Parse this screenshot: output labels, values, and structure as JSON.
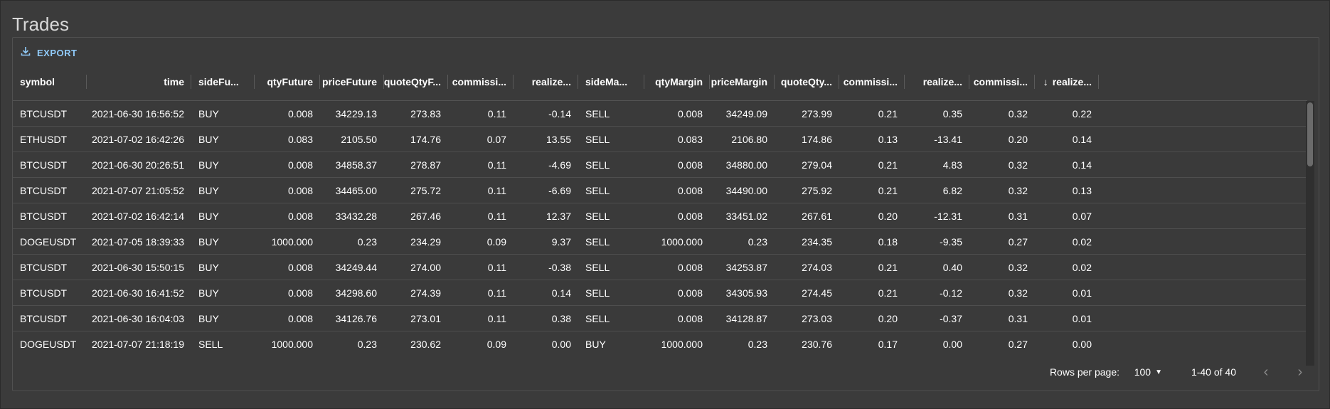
{
  "page": {
    "title": "Trades"
  },
  "toolbar": {
    "export_label": "EXPORT",
    "icon": "download-icon",
    "accent": "#90caf9"
  },
  "columns": [
    "symbol",
    "time",
    "sideFu...",
    "qtyFuture",
    "priceFuture",
    "quoteQtyF...",
    "commissi...",
    "realize...",
    "sideMa...",
    "qtyMargin",
    "priceMargin",
    "quoteQty...",
    "commissi...",
    "realize...",
    "commissi...",
    "realize..."
  ],
  "sort": {
    "column_index": 15,
    "direction": "desc",
    "icon": "arrow-down-icon"
  },
  "rows": [
    [
      "BTCUSDT",
      "2021-06-30 16:56:52",
      "BUY",
      "0.008",
      "34229.13",
      "273.83",
      "0.11",
      "-0.14",
      "SELL",
      "0.008",
      "34249.09",
      "273.99",
      "0.21",
      "0.35",
      "0.32",
      "0.22"
    ],
    [
      "ETHUSDT",
      "2021-07-02 16:42:26",
      "BUY",
      "0.083",
      "2105.50",
      "174.76",
      "0.07",
      "13.55",
      "SELL",
      "0.083",
      "2106.80",
      "174.86",
      "0.13",
      "-13.41",
      "0.20",
      "0.14"
    ],
    [
      "BTCUSDT",
      "2021-06-30 20:26:51",
      "BUY",
      "0.008",
      "34858.37",
      "278.87",
      "0.11",
      "-4.69",
      "SELL",
      "0.008",
      "34880.00",
      "279.04",
      "0.21",
      "4.83",
      "0.32",
      "0.14"
    ],
    [
      "BTCUSDT",
      "2021-07-07 21:05:52",
      "BUY",
      "0.008",
      "34465.00",
      "275.72",
      "0.11",
      "-6.69",
      "SELL",
      "0.008",
      "34490.00",
      "275.92",
      "0.21",
      "6.82",
      "0.32",
      "0.13"
    ],
    [
      "BTCUSDT",
      "2021-07-02 16:42:14",
      "BUY",
      "0.008",
      "33432.28",
      "267.46",
      "0.11",
      "12.37",
      "SELL",
      "0.008",
      "33451.02",
      "267.61",
      "0.20",
      "-12.31",
      "0.31",
      "0.07"
    ],
    [
      "DOGEUSDT",
      "2021-07-05 18:39:33",
      "BUY",
      "1000.000",
      "0.23",
      "234.29",
      "0.09",
      "9.37",
      "SELL",
      "1000.000",
      "0.23",
      "234.35",
      "0.18",
      "-9.35",
      "0.27",
      "0.02"
    ],
    [
      "BTCUSDT",
      "2021-06-30 15:50:15",
      "BUY",
      "0.008",
      "34249.44",
      "274.00",
      "0.11",
      "-0.38",
      "SELL",
      "0.008",
      "34253.87",
      "274.03",
      "0.21",
      "0.40",
      "0.32",
      "0.02"
    ],
    [
      "BTCUSDT",
      "2021-06-30 16:41:52",
      "BUY",
      "0.008",
      "34298.60",
      "274.39",
      "0.11",
      "0.14",
      "SELL",
      "0.008",
      "34305.93",
      "274.45",
      "0.21",
      "-0.12",
      "0.32",
      "0.01"
    ],
    [
      "BTCUSDT",
      "2021-06-30 16:04:03",
      "BUY",
      "0.008",
      "34126.76",
      "273.01",
      "0.11",
      "0.38",
      "SELL",
      "0.008",
      "34128.87",
      "273.03",
      "0.20",
      "-0.37",
      "0.31",
      "0.01"
    ],
    [
      "DOGEUSDT",
      "2021-07-07 21:18:19",
      "SELL",
      "1000.000",
      "0.23",
      "230.62",
      "0.09",
      "0.00",
      "BUY",
      "1000.000",
      "0.23",
      "230.76",
      "0.17",
      "0.00",
      "0.27",
      "0.00"
    ]
  ],
  "footer": {
    "rows_per_page_label": "Rows per page:",
    "rows_per_page_value": "100",
    "range": "1-40 of 40",
    "prev_icon": "chevron-left-icon",
    "next_icon": "chevron-right-icon"
  }
}
